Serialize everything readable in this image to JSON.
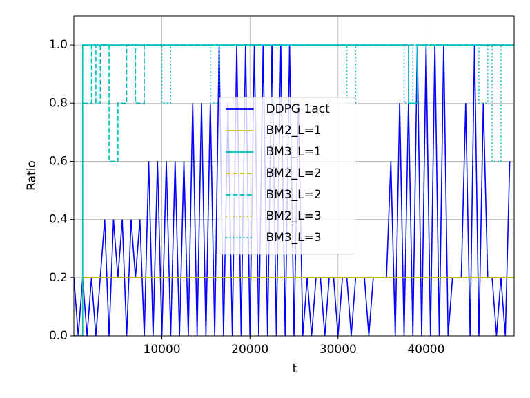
{
  "chart_data": {
    "type": "line",
    "xlabel": "t",
    "ylabel": "Ratio",
    "xlim": [
      0,
      50000
    ],
    "ylim": [
      0,
      1.1
    ],
    "xticks": [
      10000,
      20000,
      30000,
      40000
    ],
    "yticks": [
      {
        "value": 0,
        "label": "0.0"
      },
      0.2,
      0.4,
      0.6,
      0.8,
      {
        "value": 1,
        "label": "1.0"
      }
    ],
    "grid": true,
    "legend": "center",
    "series": [
      {
        "name": "DDPG 1act",
        "color": "#0000ff",
        "linestyle": "solid",
        "x": [
          0,
          500,
          1000,
          1500,
          2000,
          2500,
          3000,
          3500,
          4000,
          4500,
          5000,
          5500,
          6000,
          6500,
          7000,
          7500,
          8000,
          8500,
          9000,
          9500,
          10000,
          10500,
          11000,
          11500,
          12000,
          12500,
          13000,
          13500,
          14000,
          14500,
          15000,
          15500,
          16000,
          16500,
          17000,
          17500,
          18000,
          18500,
          19000,
          19500,
          20000,
          20500,
          21000,
          21500,
          22000,
          22500,
          23000,
          23500,
          24000,
          24500,
          25000,
          25500,
          26000,
          26500,
          27000,
          27500,
          28000,
          28500,
          29000,
          29500,
          30000,
          30500,
          31000,
          31500,
          32000,
          32500,
          33000,
          33500,
          34000,
          34500,
          35000,
          35500,
          36000,
          36500,
          37000,
          37500,
          38000,
          38500,
          39000,
          39500,
          40000,
          40500,
          41000,
          41500,
          42000,
          42500,
          43000,
          43500,
          44000,
          44500,
          45000,
          45500,
          46000,
          46500,
          47000,
          47500,
          48000,
          48500,
          49000,
          49500
        ],
        "values": [
          0.2,
          0,
          0.2,
          0,
          0.2,
          0,
          0.2,
          0.4,
          0,
          0.4,
          0.2,
          0.4,
          0,
          0.4,
          0.2,
          0.4,
          0,
          0.6,
          0,
          0.6,
          0,
          0.6,
          0,
          0.6,
          0,
          0.6,
          0,
          0.8,
          0,
          0.8,
          0,
          0.8,
          0,
          1,
          0,
          0.8,
          0,
          1,
          0,
          1,
          0,
          1,
          0,
          1,
          0,
          1,
          0,
          1,
          0,
          1,
          0,
          0.8,
          0,
          0.2,
          0,
          0.2,
          0.2,
          0,
          0.2,
          0.2,
          0,
          0.2,
          0.2,
          0,
          0.2,
          0.2,
          0.2,
          0,
          0.2,
          0.2,
          0.2,
          0.2,
          0.6,
          0,
          0.8,
          0,
          0.8,
          0,
          1,
          0,
          1,
          0,
          1,
          0,
          1,
          0,
          0.2,
          0.2,
          0.2,
          0.8,
          0,
          1,
          0,
          0.8,
          0.2,
          0.2,
          0,
          0.2,
          0,
          0.6
        ]
      },
      {
        "name": "BM2_L=1",
        "color": "#bfbf00",
        "linestyle": "solid",
        "x": [
          0,
          1000,
          1000,
          50000
        ],
        "values": [
          0,
          0,
          0.2,
          0.2
        ]
      },
      {
        "name": "BM3_L=1",
        "color": "#00bfbf",
        "linestyle": "solid",
        "x": [
          0,
          1000,
          1000,
          38000,
          38000,
          39000,
          39000,
          50000
        ],
        "values": [
          0,
          0,
          1,
          1,
          0.8,
          0.8,
          1,
          1
        ]
      },
      {
        "name": "BM2_L=2",
        "color": "#bfbf00",
        "linestyle": "dashed",
        "x": [
          0,
          1000,
          1000,
          50000
        ],
        "values": [
          0,
          0,
          0.2,
          0.2
        ]
      },
      {
        "name": "BM3_L=2",
        "color": "#00bfbf",
        "linestyle": "dashed",
        "x": [
          0,
          1000,
          1000,
          2000,
          2000,
          2500,
          2500,
          3000,
          3000,
          4000,
          4000,
          5000,
          5000,
          6000,
          6000,
          7000,
          7000,
          8000,
          8000,
          50000
        ],
        "values": [
          0,
          0,
          0.8,
          0.8,
          1,
          1,
          0.8,
          0.8,
          1,
          1,
          0.6,
          0.6,
          0.8,
          0.8,
          1,
          1,
          0.8,
          0.8,
          1,
          1
        ]
      },
      {
        "name": "BM2_L=3",
        "color": "#bfbf00",
        "linestyle": "dotted",
        "x": [
          0,
          1000,
          1000,
          50000
        ],
        "values": [
          0,
          0,
          0.2,
          0.2
        ]
      },
      {
        "name": "BM3_L=3",
        "color": "#00bfbf",
        "linestyle": "dotted",
        "x": [
          0,
          1000,
          1000,
          10000,
          10000,
          11000,
          11000,
          15500,
          15500,
          16500,
          16500,
          31000,
          31000,
          32000,
          32000,
          37500,
          37500,
          38500,
          38500,
          46000,
          46000,
          47000,
          47000,
          47500,
          47500,
          48500,
          48500,
          50000
        ],
        "values": [
          0,
          0,
          1,
          1,
          0.8,
          0.8,
          1,
          1,
          0.8,
          0.8,
          1,
          1,
          0.8,
          0.8,
          1,
          1,
          0.8,
          0.8,
          1,
          1,
          0.8,
          0.8,
          1,
          1,
          0.6,
          0.6,
          1,
          1
        ]
      }
    ]
  }
}
